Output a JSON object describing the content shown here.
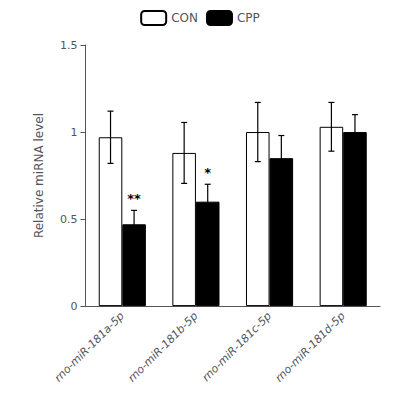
{
  "chart_data": {
    "type": "bar",
    "categories": [
      "rno-miR-181a-5p",
      "rno-miR-181b-5p",
      "rno-miR-181c-5p",
      "rno-miR-181d-5p"
    ],
    "series": [
      {
        "name": "CON",
        "color": "#ffffff",
        "values": [
          0.97,
          0.88,
          1.0,
          1.03
        ],
        "errors": [
          0.15,
          0.175,
          0.17,
          0.14
        ]
      },
      {
        "name": "CPP",
        "color": "#000000",
        "values": [
          0.47,
          0.6,
          0.85,
          1.0
        ],
        "errors": [
          0.08,
          0.1,
          0.13,
          0.1
        ]
      }
    ],
    "ylabel": "Relative miRNA level",
    "ylim": [
      0,
      1.5
    ],
    "yticks": [
      0,
      0.5,
      1,
      1.5
    ],
    "annotations": [
      {
        "category": "rno-miR-181a-5p",
        "series": "CPP",
        "text": "**"
      },
      {
        "category": "rno-miR-181b-5p",
        "series": "CPP",
        "text": "*"
      }
    ],
    "legend": "top",
    "grid": false
  }
}
